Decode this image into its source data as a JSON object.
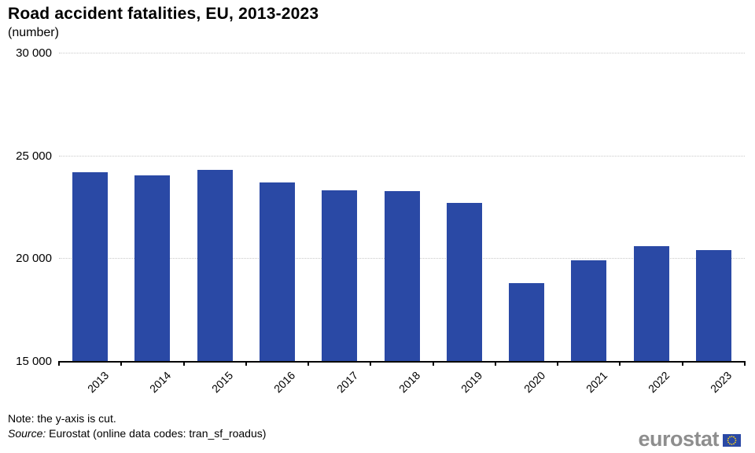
{
  "header": {
    "title": "Road accident fatalities, EU, 2013-2023",
    "subtitle": "(number)"
  },
  "chart_data": {
    "type": "bar",
    "title": "Road accident fatalities, EU, 2013-2023",
    "subtitle": "(number)",
    "categories": [
      "2013",
      "2014",
      "2015",
      "2016",
      "2017",
      "2018",
      "2019",
      "2020",
      "2021",
      "2022",
      "2023"
    ],
    "values": [
      24200,
      24050,
      24300,
      23700,
      23300,
      23250,
      22700,
      18800,
      19900,
      20600,
      20400
    ],
    "xlabel": "",
    "ylabel": "number",
    "ylim": [
      15000,
      30000
    ],
    "yticks": [
      {
        "value": 30000,
        "label": "30 000"
      },
      {
        "value": 25000,
        "label": "25 000"
      },
      {
        "value": 20000,
        "label": "20 000"
      },
      {
        "value": 15000,
        "label": "15 000"
      }
    ],
    "grid": "horizontal dotted",
    "legend_position": "none",
    "bar_color": "#2a49a5",
    "axis_note": "y-axis is cut, starts at 15 000"
  },
  "footer": {
    "note": "Note: the y-axis is cut.",
    "source_label": "Source:",
    "source_text": " Eurostat (online data codes: tran_sf_roadus)"
  },
  "logo": {
    "text": "eurostat",
    "flag_icon": "eu-flag-icon",
    "flag_blue": "#2a49a5",
    "star_yellow": "#ffd617"
  },
  "colors": {
    "bar": "#2a49a5",
    "gridline": "#c9c9c9",
    "axis": "#000000",
    "logo_gray": "#8e8e8e"
  }
}
